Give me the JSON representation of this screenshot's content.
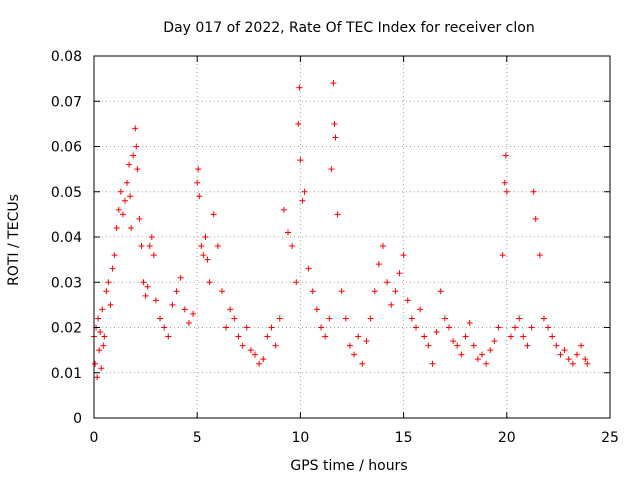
{
  "chart_data": {
    "type": "scatter",
    "title": "Day 017 of 2022, Rate Of TEC Index for receiver clon",
    "xlabel": "GPS time / hours",
    "ylabel": "ROTI / TECUs",
    "xlim": [
      0,
      25
    ],
    "ylim": [
      0,
      0.08
    ],
    "xticks": [
      0,
      5,
      10,
      15,
      20,
      25
    ],
    "xtick_labels": [
      "0",
      "5",
      "10",
      "15",
      "20",
      "25"
    ],
    "yticks": [
      0,
      0.01,
      0.02,
      0.03,
      0.04,
      0.05,
      0.06,
      0.07,
      0.08
    ],
    "ytick_labels": [
      "0",
      "0.01",
      "0.02",
      "0.03",
      "0.04",
      "0.05",
      "0.06",
      "0.07",
      "0.08"
    ],
    "grid": true,
    "marker": "plus",
    "color": "#ff0000",
    "series": [
      {
        "x": [
          0.0,
          0.05,
          0.1,
          0.15,
          0.2,
          0.25,
          0.3,
          0.35,
          0.4,
          0.45,
          0.5,
          0.6,
          0.7,
          0.8,
          0.9,
          1.0,
          1.1,
          1.2,
          1.3,
          1.4,
          1.5,
          1.6,
          1.7,
          1.75,
          1.8,
          1.9,
          2.0,
          2.05,
          2.1,
          2.2,
          2.3,
          2.4,
          2.5,
          2.6,
          2.7,
          2.8,
          2.9,
          3.0,
          3.2,
          3.4,
          3.6,
          3.8,
          4.0,
          4.2,
          4.4,
          4.6,
          4.8,
          5.0,
          5.05,
          5.1,
          5.2,
          5.3,
          5.4,
          5.5,
          5.6,
          5.8,
          6.0,
          6.2,
          6.4,
          6.6,
          6.8,
          7.0,
          7.2,
          7.4,
          7.6,
          7.8,
          8.0,
          8.2,
          8.4,
          8.6,
          8.8,
          9.0,
          9.2,
          9.4,
          9.6,
          9.8,
          9.9,
          9.95,
          10.0,
          10.1,
          10.2,
          10.4,
          10.6,
          10.8,
          11.0,
          11.2,
          11.4,
          11.5,
          11.6,
          11.65,
          11.7,
          11.8,
          12.0,
          12.2,
          12.4,
          12.6,
          12.8,
          13.0,
          13.2,
          13.4,
          13.6,
          13.8,
          14.0,
          14.2,
          14.4,
          14.6,
          14.8,
          15.0,
          15.2,
          15.4,
          15.6,
          15.8,
          16.0,
          16.2,
          16.4,
          16.6,
          16.8,
          17.0,
          17.2,
          17.4,
          17.6,
          17.8,
          18.0,
          18.2,
          18.4,
          18.6,
          18.8,
          19.0,
          19.2,
          19.4,
          19.6,
          19.8,
          19.9,
          19.95,
          20.0,
          20.2,
          20.4,
          20.6,
          20.8,
          21.0,
          21.2,
          21.3,
          21.4,
          21.6,
          21.8,
          22.0,
          22.2,
          22.4,
          22.6,
          22.8,
          23.0,
          23.2,
          23.4,
          23.6,
          23.8,
          23.9
        ],
        "y": [
          0.018,
          0.012,
          0.02,
          0.009,
          0.022,
          0.015,
          0.019,
          0.011,
          0.024,
          0.016,
          0.018,
          0.028,
          0.03,
          0.025,
          0.033,
          0.036,
          0.042,
          0.046,
          0.05,
          0.045,
          0.048,
          0.052,
          0.056,
          0.049,
          0.042,
          0.058,
          0.064,
          0.06,
          0.055,
          0.044,
          0.038,
          0.03,
          0.027,
          0.029,
          0.038,
          0.04,
          0.036,
          0.026,
          0.022,
          0.02,
          0.018,
          0.025,
          0.028,
          0.031,
          0.024,
          0.021,
          0.023,
          0.052,
          0.055,
          0.049,
          0.038,
          0.036,
          0.04,
          0.035,
          0.03,
          0.045,
          0.038,
          0.028,
          0.02,
          0.024,
          0.022,
          0.018,
          0.016,
          0.02,
          0.015,
          0.014,
          0.012,
          0.013,
          0.018,
          0.02,
          0.016,
          0.022,
          0.046,
          0.041,
          0.038,
          0.03,
          0.065,
          0.073,
          0.057,
          0.048,
          0.05,
          0.033,
          0.028,
          0.024,
          0.02,
          0.018,
          0.022,
          0.055,
          0.074,
          0.065,
          0.062,
          0.045,
          0.028,
          0.022,
          0.016,
          0.014,
          0.018,
          0.012,
          0.017,
          0.022,
          0.028,
          0.034,
          0.038,
          0.03,
          0.025,
          0.028,
          0.032,
          0.036,
          0.026,
          0.022,
          0.02,
          0.024,
          0.018,
          0.016,
          0.012,
          0.019,
          0.028,
          0.022,
          0.02,
          0.017,
          0.016,
          0.014,
          0.018,
          0.021,
          0.016,
          0.013,
          0.014,
          0.012,
          0.015,
          0.017,
          0.02,
          0.036,
          0.052,
          0.058,
          0.05,
          0.018,
          0.02,
          0.022,
          0.018,
          0.016,
          0.02,
          0.05,
          0.044,
          0.036,
          0.022,
          0.02,
          0.018,
          0.016,
          0.014,
          0.015,
          0.013,
          0.012,
          0.014,
          0.016,
          0.013,
          0.012
        ]
      }
    ]
  }
}
